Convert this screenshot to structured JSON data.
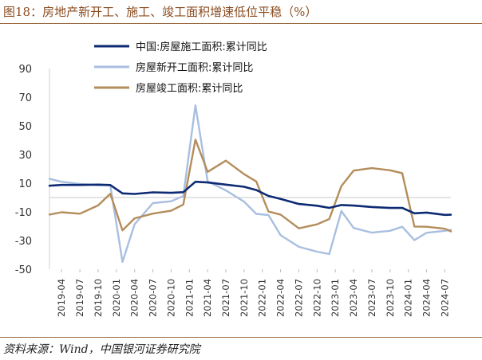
{
  "header": {
    "title": "图18：房地产新开工、施工、竣工面积增速低位平稳（%）"
  },
  "footer": {
    "source": "资料来源：Wind，中国银河证券研究院"
  },
  "chart_data": {
    "type": "line",
    "title": "房地产新开工、施工、竣工面积增速低位平稳（%）",
    "ylim": [
      -50,
      90
    ],
    "yticks": [
      90,
      70,
      50,
      30,
      10,
      -10,
      -30,
      -50
    ],
    "x_ticks": [
      "2019-04",
      "2019-07",
      "2019-10",
      "2020-01",
      "2020-04",
      "2020-07",
      "2020-10",
      "2021-01",
      "2021-04",
      "2021-07",
      "2021-10",
      "2022-01",
      "2022-04",
      "2022-07",
      "2022-10",
      "2023-01",
      "2023-04",
      "2023-07",
      "2023-10",
      "2024-01",
      "2024-04",
      "2024-07"
    ],
    "legend_position": "top-left",
    "grid": false,
    "series": [
      {
        "name": "中国:房屋施工面积:累计同比",
        "color": "#0d2b73",
        "x": [
          "2019-02",
          "2019-04",
          "2019-07",
          "2019-10",
          "2019-12",
          "2020-02",
          "2020-04",
          "2020-07",
          "2020-10",
          "2020-12",
          "2021-02",
          "2021-04",
          "2021-07",
          "2021-10",
          "2021-12",
          "2022-02",
          "2022-04",
          "2022-07",
          "2022-10",
          "2022-12",
          "2023-02",
          "2023-04",
          "2023-07",
          "2023-10",
          "2023-12",
          "2024-02",
          "2024-04",
          "2024-07",
          "2024-08"
        ],
        "values": [
          8.2,
          8.8,
          8.8,
          9.0,
          8.7,
          2.9,
          2.5,
          3.6,
          3.3,
          3.7,
          11.0,
          10.5,
          9.0,
          7.5,
          5.2,
          1.1,
          -1.0,
          -4.5,
          -5.7,
          -7.2,
          -5.2,
          -5.6,
          -6.6,
          -7.3,
          -7.2,
          -11.0,
          -10.5,
          -12.1,
          -12.0
        ]
      },
      {
        "name": "房屋新开工面积:累计同比",
        "color": "#a9bfe0",
        "x": [
          "2019-02",
          "2019-04",
          "2019-07",
          "2019-10",
          "2019-12",
          "2020-02",
          "2020-04",
          "2020-07",
          "2020-10",
          "2020-12",
          "2021-02",
          "2021-04",
          "2021-07",
          "2021-10",
          "2021-12",
          "2022-02",
          "2022-04",
          "2022-07",
          "2022-10",
          "2022-12",
          "2023-02",
          "2023-04",
          "2023-07",
          "2023-10",
          "2023-12",
          "2024-02",
          "2024-04",
          "2024-07",
          "2024-08"
        ],
        "values": [
          13.0,
          11.0,
          9.5,
          8.6,
          8.5,
          -44.9,
          -18.6,
          -3.9,
          -2.6,
          1.0,
          64.3,
          11.3,
          5.0,
          -2.9,
          -11.4,
          -12.2,
          -26.3,
          -34.4,
          -37.8,
          -39.4,
          -9.4,
          -21.2,
          -24.5,
          -23.2,
          -20.4,
          -29.7,
          -24.6,
          -23.2,
          -22.5
        ]
      },
      {
        "name": "房屋竣工面积:累计同比",
        "color": "#b48d5b",
        "x": [
          "2019-02",
          "2019-04",
          "2019-07",
          "2019-10",
          "2019-12",
          "2020-02",
          "2020-04",
          "2020-07",
          "2020-10",
          "2020-12",
          "2021-02",
          "2021-04",
          "2021-07",
          "2021-10",
          "2021-12",
          "2022-02",
          "2022-04",
          "2022-07",
          "2022-10",
          "2022-12",
          "2023-02",
          "2023-04",
          "2023-07",
          "2023-10",
          "2023-12",
          "2024-02",
          "2024-04",
          "2024-07",
          "2024-08"
        ],
        "values": [
          -11.9,
          -10.3,
          -11.3,
          -5.5,
          2.6,
          -22.9,
          -14.5,
          -11.2,
          -9.2,
          -4.9,
          40.4,
          17.9,
          25.7,
          16.3,
          11.2,
          -9.8,
          -11.9,
          -21.5,
          -18.7,
          -15.0,
          8.0,
          18.8,
          20.5,
          19.0,
          17.0,
          -20.2,
          -20.4,
          -21.8,
          -23.6
        ]
      }
    ]
  }
}
